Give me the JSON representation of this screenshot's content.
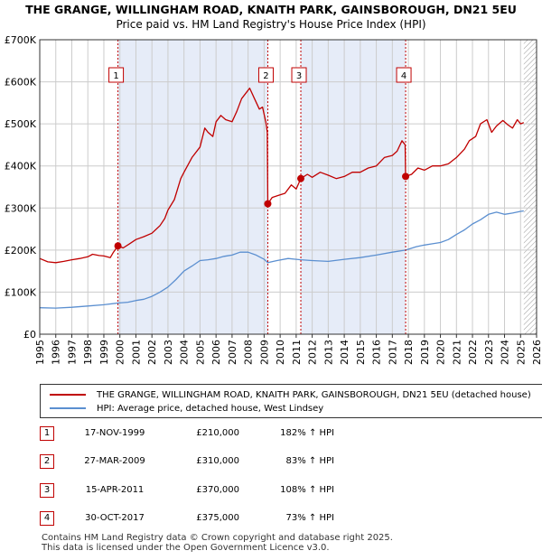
{
  "chart_data": {
    "type": "line",
    "title": "THE GRANGE, WILLINGHAM ROAD, KNAITH PARK, GAINSBOROUGH, DN21 5EU",
    "subtitle": "Price paid vs. HM Land Registry's House Price Index (HPI)",
    "xlim": [
      1995,
      2026
    ],
    "ylim": [
      0,
      700000
    ],
    "x_ticks": [
      "1995",
      "1996",
      "1997",
      "1998",
      "1999",
      "2000",
      "2001",
      "2002",
      "2003",
      "2004",
      "2005",
      "2006",
      "2007",
      "2008",
      "2009",
      "2010",
      "2011",
      "2012",
      "2013",
      "2014",
      "2015",
      "2016",
      "2017",
      "2018",
      "2019",
      "2020",
      "2021",
      "2022",
      "2023",
      "2024",
      "2025",
      "2026"
    ],
    "y_ticks": [
      {
        "value": 0,
        "label": "£0"
      },
      {
        "value": 100000,
        "label": "£100K"
      },
      {
        "value": 200000,
        "label": "£200K"
      },
      {
        "value": 300000,
        "label": "£300K"
      },
      {
        "value": 400000,
        "label": "£400K"
      },
      {
        "value": 500000,
        "label": "£500K"
      },
      {
        "value": 600000,
        "label": "£600K"
      },
      {
        "value": 700000,
        "label": "£700K"
      }
    ],
    "shaded_periods": [
      [
        1999.88,
        2009.23
      ],
      [
        2011.29,
        2017.83
      ]
    ],
    "hatched_after": 2025.2,
    "series": [
      {
        "name": "THE GRANGE, WILLINGHAM ROAD, KNAITH PARK, GAINSBOROUGH, DN21 5EU (detached house)",
        "color": "#c00000",
        "points": [
          [
            1995.0,
            180000
          ],
          [
            1995.5,
            172000
          ],
          [
            1996.0,
            170000
          ],
          [
            1996.5,
            173000
          ],
          [
            1997.0,
            177000
          ],
          [
            1997.5,
            180000
          ],
          [
            1998.0,
            184000
          ],
          [
            1998.3,
            190000
          ],
          [
            1998.7,
            187000
          ],
          [
            1999.0,
            186000
          ],
          [
            1999.4,
            182000
          ],
          [
            1999.6,
            195000
          ],
          [
            1999.88,
            210000
          ],
          [
            2000.2,
            205000
          ],
          [
            2000.6,
            215000
          ],
          [
            2001.0,
            225000
          ],
          [
            2001.5,
            232000
          ],
          [
            2002.0,
            240000
          ],
          [
            2002.5,
            258000
          ],
          [
            2002.8,
            275000
          ],
          [
            2003.0,
            295000
          ],
          [
            2003.4,
            320000
          ],
          [
            2003.8,
            370000
          ],
          [
            2004.0,
            385000
          ],
          [
            2004.5,
            420000
          ],
          [
            2005.0,
            445000
          ],
          [
            2005.3,
            490000
          ],
          [
            2005.5,
            480000
          ],
          [
            2005.8,
            470000
          ],
          [
            2006.0,
            505000
          ],
          [
            2006.3,
            520000
          ],
          [
            2006.6,
            510000
          ],
          [
            2007.0,
            505000
          ],
          [
            2007.3,
            530000
          ],
          [
            2007.6,
            560000
          ],
          [
            2007.9,
            575000
          ],
          [
            2008.1,
            585000
          ],
          [
            2008.4,
            560000
          ],
          [
            2008.7,
            535000
          ],
          [
            2008.9,
            540000
          ],
          [
            2009.1,
            505000
          ],
          [
            2009.2,
            480000
          ],
          [
            2009.23,
            310000
          ],
          [
            2009.5,
            325000
          ],
          [
            2009.9,
            330000
          ],
          [
            2010.3,
            335000
          ],
          [
            2010.7,
            355000
          ],
          [
            2011.0,
            345000
          ],
          [
            2011.29,
            370000
          ],
          [
            2011.7,
            380000
          ],
          [
            2012.0,
            373000
          ],
          [
            2012.5,
            385000
          ],
          [
            2013.0,
            378000
          ],
          [
            2013.5,
            370000
          ],
          [
            2014.0,
            375000
          ],
          [
            2014.5,
            385000
          ],
          [
            2015.0,
            385000
          ],
          [
            2015.5,
            395000
          ],
          [
            2016.0,
            400000
          ],
          [
            2016.5,
            420000
          ],
          [
            2017.0,
            425000
          ],
          [
            2017.3,
            435000
          ],
          [
            2017.6,
            460000
          ],
          [
            2017.8,
            450000
          ],
          [
            2017.83,
            375000
          ],
          [
            2018.2,
            380000
          ],
          [
            2018.6,
            395000
          ],
          [
            2019.0,
            390000
          ],
          [
            2019.5,
            400000
          ],
          [
            2020.0,
            400000
          ],
          [
            2020.5,
            405000
          ],
          [
            2021.0,
            420000
          ],
          [
            2021.5,
            440000
          ],
          [
            2021.8,
            460000
          ],
          [
            2022.2,
            470000
          ],
          [
            2022.5,
            500000
          ],
          [
            2022.9,
            510000
          ],
          [
            2023.2,
            480000
          ],
          [
            2023.5,
            495000
          ],
          [
            2023.9,
            508000
          ],
          [
            2024.2,
            498000
          ],
          [
            2024.5,
            490000
          ],
          [
            2024.8,
            510000
          ],
          [
            2025.0,
            500000
          ],
          [
            2025.2,
            503000
          ]
        ]
      },
      {
        "name": "HPI: Average price, detached house, West Lindsey",
        "color": "#5b8fd0",
        "points": [
          [
            1995.0,
            63000
          ],
          [
            1996.0,
            62000
          ],
          [
            1997.0,
            64000
          ],
          [
            1998.0,
            67000
          ],
          [
            1999.0,
            70000
          ],
          [
            1999.88,
            74000
          ],
          [
            2000.5,
            76000
          ],
          [
            2001.0,
            80000
          ],
          [
            2001.5,
            83000
          ],
          [
            2002.0,
            90000
          ],
          [
            2002.5,
            100000
          ],
          [
            2003.0,
            112000
          ],
          [
            2003.5,
            130000
          ],
          [
            2004.0,
            150000
          ],
          [
            2004.5,
            162000
          ],
          [
            2005.0,
            175000
          ],
          [
            2005.5,
            177000
          ],
          [
            2006.0,
            180000
          ],
          [
            2006.5,
            185000
          ],
          [
            2007.0,
            188000
          ],
          [
            2007.5,
            195000
          ],
          [
            2008.0,
            195000
          ],
          [
            2008.5,
            188000
          ],
          [
            2009.0,
            178000
          ],
          [
            2009.23,
            170000
          ],
          [
            2009.8,
            175000
          ],
          [
            2010.5,
            180000
          ],
          [
            2011.0,
            178000
          ],
          [
            2011.29,
            177000
          ],
          [
            2012.0,
            175000
          ],
          [
            2013.0,
            173000
          ],
          [
            2014.0,
            178000
          ],
          [
            2015.0,
            182000
          ],
          [
            2016.0,
            188000
          ],
          [
            2017.0,
            195000
          ],
          [
            2017.83,
            200000
          ],
          [
            2018.5,
            208000
          ],
          [
            2019.0,
            212000
          ],
          [
            2019.5,
            215000
          ],
          [
            2020.0,
            218000
          ],
          [
            2020.5,
            225000
          ],
          [
            2021.0,
            237000
          ],
          [
            2021.5,
            248000
          ],
          [
            2022.0,
            262000
          ],
          [
            2022.5,
            272000
          ],
          [
            2023.0,
            285000
          ],
          [
            2023.5,
            290000
          ],
          [
            2024.0,
            285000
          ],
          [
            2024.5,
            288000
          ],
          [
            2025.0,
            292000
          ],
          [
            2025.2,
            293000
          ]
        ]
      }
    ],
    "sales": [
      {
        "num": "1",
        "year": 1999.88,
        "price": 210000
      },
      {
        "num": "2",
        "year": 2009.23,
        "price": 310000
      },
      {
        "num": "3",
        "year": 2011.29,
        "price": 370000
      },
      {
        "num": "4",
        "year": 2017.83,
        "price": 375000
      }
    ],
    "colors": {
      "property": "#c00000",
      "hpi": "#5b8fd0",
      "shade": "#e6ecf8",
      "grid": "#cccccc"
    }
  },
  "legend": {
    "property": "THE GRANGE, WILLINGHAM ROAD, KNAITH PARK, GAINSBOROUGH, DN21 5EU (detached house)",
    "hpi": "HPI: Average price, detached house, West Lindsey"
  },
  "sales_table": [
    {
      "num": "1",
      "date": "17-NOV-1999",
      "price": "£210,000",
      "hpi": "182% ↑ HPI"
    },
    {
      "num": "2",
      "date": "27-MAR-2009",
      "price": "£310,000",
      "hpi": "83% ↑ HPI"
    },
    {
      "num": "3",
      "date": "15-APR-2011",
      "price": "£370,000",
      "hpi": "108% ↑ HPI"
    },
    {
      "num": "4",
      "date": "30-OCT-2017",
      "price": "£375,000",
      "hpi": "73% ↑ HPI"
    }
  ],
  "footer": {
    "line1": "Contains HM Land Registry data © Crown copyright and database right 2025.",
    "line2": "This data is licensed under the Open Government Licence v3.0."
  }
}
